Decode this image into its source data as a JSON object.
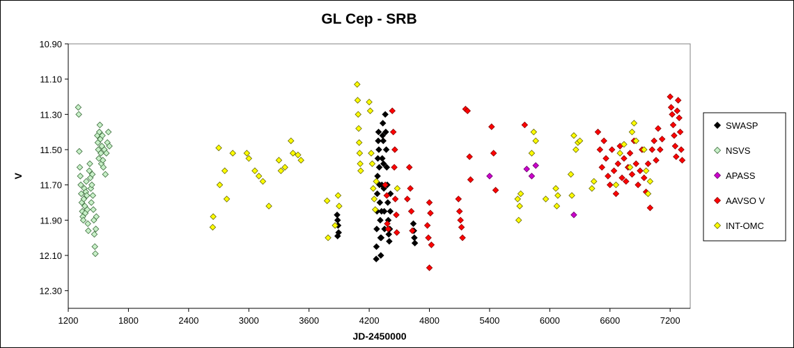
{
  "chart_data": {
    "type": "scatter",
    "title": "GL Cep - SRB",
    "xlabel": "JD-2450000",
    "ylabel": "V",
    "xlim": [
      1200,
      7400
    ],
    "ylim": [
      10.9,
      12.4
    ],
    "y_inverted": true,
    "grid": false,
    "legend_position": "right",
    "x_ticks": [
      "1200",
      "1800",
      "2400",
      "3000",
      "3600",
      "4200",
      "4800",
      "5400",
      "6000",
      "6600",
      "7200"
    ],
    "y_ticks": [
      "10.90",
      "11.10",
      "11.30",
      "11.50",
      "11.70",
      "11.90",
      "12.10",
      "12.30"
    ],
    "series": [
      {
        "name": "SWASP",
        "marker": "diamond",
        "fill": "#000000",
        "edge": "#000000",
        "points": [
          [
            3880,
            11.87
          ],
          [
            3885,
            11.9
          ],
          [
            3890,
            11.93
          ],
          [
            3895,
            11.97
          ],
          [
            3885,
            11.99
          ],
          [
            4270,
            12.12
          ],
          [
            4272,
            12.05
          ],
          [
            4275,
            11.95
          ],
          [
            4278,
            11.85
          ],
          [
            4280,
            11.75
          ],
          [
            4283,
            11.65
          ],
          [
            4286,
            11.55
          ],
          [
            4290,
            11.45
          ],
          [
            4293,
            11.4
          ],
          [
            4296,
            11.5
          ],
          [
            4300,
            11.6
          ],
          [
            4303,
            11.7
          ],
          [
            4306,
            11.8
          ],
          [
            4310,
            11.9
          ],
          [
            4313,
            12.0
          ],
          [
            4316,
            12.1
          ],
          [
            4320,
            12.0
          ],
          [
            4323,
            11.85
          ],
          [
            4326,
            11.7
          ],
          [
            4330,
            11.55
          ],
          [
            4333,
            11.42
          ],
          [
            4336,
            11.35
          ],
          [
            4340,
            11.45
          ],
          [
            4343,
            11.58
          ],
          [
            4346,
            11.72
          ],
          [
            4350,
            11.85
          ],
          [
            4353,
            11.95
          ],
          [
            4360,
            11.3
          ],
          [
            4365,
            11.4
          ],
          [
            4370,
            11.5
          ],
          [
            4375,
            11.6
          ],
          [
            4380,
            11.7
          ],
          [
            4385,
            11.8
          ],
          [
            4390,
            11.9
          ],
          [
            4395,
            11.98
          ],
          [
            4400,
            12.02
          ],
          [
            4405,
            11.95
          ],
          [
            4410,
            11.85
          ],
          [
            4412,
            11.75
          ],
          [
            4640,
            11.92
          ],
          [
            4645,
            11.96
          ],
          [
            4650,
            12.0
          ],
          [
            4655,
            12.03
          ]
        ]
      },
      {
        "name": "NSVS",
        "marker": "diamond",
        "fill": "#c8f0c8",
        "edge": "#3a6a3a",
        "points": [
          [
            1300,
            11.26
          ],
          [
            1305,
            11.3
          ],
          [
            1310,
            11.51
          ],
          [
            1315,
            11.6
          ],
          [
            1320,
            11.65
          ],
          [
            1325,
            11.7
          ],
          [
            1330,
            11.75
          ],
          [
            1335,
            11.8
          ],
          [
            1340,
            11.85
          ],
          [
            1345,
            11.88
          ],
          [
            1350,
            11.9
          ],
          [
            1355,
            11.78
          ],
          [
            1360,
            11.72
          ],
          [
            1365,
            11.82
          ],
          [
            1370,
            11.86
          ],
          [
            1375,
            11.74
          ],
          [
            1380,
            11.68
          ],
          [
            1385,
            11.76
          ],
          [
            1390,
            11.84
          ],
          [
            1395,
            11.92
          ],
          [
            1400,
            11.96
          ],
          [
            1410,
            11.62
          ],
          [
            1415,
            11.58
          ],
          [
            1420,
            11.66
          ],
          [
            1425,
            11.72
          ],
          [
            1430,
            11.8
          ],
          [
            1435,
            11.7
          ],
          [
            1440,
            11.64
          ],
          [
            1445,
            11.76
          ],
          [
            1450,
            11.84
          ],
          [
            1455,
            11.9
          ],
          [
            1460,
            11.98
          ],
          [
            1465,
            12.05
          ],
          [
            1470,
            12.09
          ],
          [
            1475,
            11.95
          ],
          [
            1480,
            11.88
          ],
          [
            1490,
            11.42
          ],
          [
            1495,
            11.46
          ],
          [
            1500,
            11.5
          ],
          [
            1505,
            11.55
          ],
          [
            1510,
            11.4
          ],
          [
            1515,
            11.36
          ],
          [
            1520,
            11.44
          ],
          [
            1525,
            11.52
          ],
          [
            1530,
            11.58
          ],
          [
            1535,
            11.48
          ],
          [
            1540,
            11.42
          ],
          [
            1545,
            11.56
          ],
          [
            1550,
            11.6
          ],
          [
            1560,
            11.5
          ],
          [
            1570,
            11.64
          ],
          [
            1580,
            11.52
          ],
          [
            1590,
            11.46
          ],
          [
            1600,
            11.4
          ],
          [
            1610,
            11.48
          ]
        ]
      },
      {
        "name": "APASS",
        "marker": "diamond",
        "fill": "#cc00cc",
        "edge": "#660066",
        "points": [
          [
            5400,
            11.65
          ],
          [
            5770,
            11.61
          ],
          [
            5820,
            11.65
          ],
          [
            5860,
            11.59
          ],
          [
            6240,
            11.87
          ]
        ]
      },
      {
        "name": "AAVSO V",
        "marker": "diamond",
        "fill": "#ff0000",
        "edge": "#880000",
        "points": [
          [
            4360,
            11.7
          ],
          [
            4375,
            11.76
          ],
          [
            4380,
            11.92
          ],
          [
            4390,
            11.95
          ],
          [
            4430,
            11.28
          ],
          [
            4440,
            11.4
          ],
          [
            4450,
            11.6
          ],
          [
            4460,
            11.78
          ],
          [
            4470,
            11.87
          ],
          [
            4475,
            11.97
          ],
          [
            4455,
            11.5
          ],
          [
            4580,
            11.78
          ],
          [
            4600,
            11.6
          ],
          [
            4610,
            11.72
          ],
          [
            4620,
            11.85
          ],
          [
            4630,
            11.96
          ],
          [
            4780,
            11.93
          ],
          [
            4790,
            12.0
          ],
          [
            4800,
            11.8
          ],
          [
            4810,
            11.86
          ],
          [
            4820,
            12.04
          ],
          [
            4800,
            12.17
          ],
          [
            5090,
            11.78
          ],
          [
            5100,
            11.85
          ],
          [
            5110,
            11.9
          ],
          [
            5120,
            11.94
          ],
          [
            5130,
            12.0
          ],
          [
            5160,
            11.27
          ],
          [
            5180,
            11.28
          ],
          [
            5200,
            11.54
          ],
          [
            5210,
            11.67
          ],
          [
            5420,
            11.37
          ],
          [
            5440,
            11.52
          ],
          [
            5460,
            11.73
          ],
          [
            5750,
            11.36
          ],
          [
            6480,
            11.4
          ],
          [
            6500,
            11.5
          ],
          [
            6520,
            11.6
          ],
          [
            6540,
            11.45
          ],
          [
            6560,
            11.55
          ],
          [
            6580,
            11.65
          ],
          [
            6600,
            11.7
          ],
          [
            6620,
            11.5
          ],
          [
            6640,
            11.62
          ],
          [
            6660,
            11.75
          ],
          [
            6680,
            11.58
          ],
          [
            6700,
            11.48
          ],
          [
            6720,
            11.66
          ],
          [
            6740,
            11.55
          ],
          [
            6760,
            11.68
          ],
          [
            6780,
            11.6
          ],
          [
            6800,
            11.52
          ],
          [
            6820,
            11.64
          ],
          [
            6840,
            11.45
          ],
          [
            6860,
            11.58
          ],
          [
            6880,
            11.7
          ],
          [
            6900,
            11.62
          ],
          [
            6920,
            11.5
          ],
          [
            6940,
            11.66
          ],
          [
            6960,
            11.74
          ],
          [
            6980,
            11.58
          ],
          [
            7000,
            11.83
          ],
          [
            7020,
            11.5
          ],
          [
            7040,
            11.45
          ],
          [
            7060,
            11.56
          ],
          [
            7080,
            11.38
          ],
          [
            7100,
            11.5
          ],
          [
            7120,
            11.44
          ],
          [
            7200,
            11.2
          ],
          [
            7210,
            11.26
          ],
          [
            7220,
            11.3
          ],
          [
            7230,
            11.36
          ],
          [
            7240,
            11.42
          ],
          [
            7250,
            11.48
          ],
          [
            7260,
            11.54
          ],
          [
            7270,
            11.28
          ],
          [
            7280,
            11.22
          ],
          [
            7290,
            11.32
          ],
          [
            7300,
            11.4
          ],
          [
            7310,
            11.5
          ],
          [
            7320,
            11.56
          ]
        ]
      },
      {
        "name": "INT-OMC",
        "marker": "diamond",
        "fill": "#ffff00",
        "edge": "#666600",
        "points": [
          [
            2640,
            11.94
          ],
          [
            2645,
            11.88
          ],
          [
            2700,
            11.49
          ],
          [
            2710,
            11.7
          ],
          [
            2760,
            11.62
          ],
          [
            2780,
            11.78
          ],
          [
            2840,
            11.52
          ],
          [
            2980,
            11.52
          ],
          [
            3000,
            11.55
          ],
          [
            3060,
            11.62
          ],
          [
            3100,
            11.65
          ],
          [
            3140,
            11.68
          ],
          [
            3200,
            11.82
          ],
          [
            3300,
            11.56
          ],
          [
            3320,
            11.62
          ],
          [
            3360,
            11.6
          ],
          [
            3420,
            11.45
          ],
          [
            3440,
            11.52
          ],
          [
            3490,
            11.53
          ],
          [
            3520,
            11.56
          ],
          [
            3780,
            11.79
          ],
          [
            3790,
            12.0
          ],
          [
            3860,
            11.93
          ],
          [
            3890,
            11.76
          ],
          [
            3900,
            11.82
          ],
          [
            4080,
            11.13
          ],
          [
            4085,
            11.22
          ],
          [
            4090,
            11.3
          ],
          [
            4095,
            11.38
          ],
          [
            4100,
            11.46
          ],
          [
            4105,
            11.52
          ],
          [
            4110,
            11.58
          ],
          [
            4115,
            11.62
          ],
          [
            4200,
            11.23
          ],
          [
            4210,
            11.28
          ],
          [
            4220,
            11.52
          ],
          [
            4230,
            11.58
          ],
          [
            4240,
            11.72
          ],
          [
            4250,
            11.78
          ],
          [
            4260,
            11.84
          ],
          [
            4270,
            11.68
          ],
          [
            4480,
            11.72
          ],
          [
            5680,
            11.78
          ],
          [
            5690,
            11.9
          ],
          [
            5700,
            11.82
          ],
          [
            5710,
            11.75
          ],
          [
            5820,
            11.52
          ],
          [
            5840,
            11.4
          ],
          [
            5860,
            11.45
          ],
          [
            5960,
            11.78
          ],
          [
            6060,
            11.72
          ],
          [
            6070,
            11.82
          ],
          [
            6080,
            11.76
          ],
          [
            6210,
            11.64
          ],
          [
            6220,
            11.76
          ],
          [
            6240,
            11.42
          ],
          [
            6260,
            11.5
          ],
          [
            6280,
            11.46
          ],
          [
            6300,
            11.45
          ],
          [
            6420,
            11.72
          ],
          [
            6440,
            11.68
          ],
          [
            6660,
            11.7
          ],
          [
            6700,
            11.52
          ],
          [
            6740,
            11.47
          ],
          [
            6800,
            11.6
          ],
          [
            6820,
            11.4
          ],
          [
            6840,
            11.35
          ],
          [
            6860,
            11.45
          ],
          [
            6940,
            11.5
          ],
          [
            6960,
            11.62
          ],
          [
            6980,
            11.75
          ],
          [
            7000,
            11.68
          ]
        ]
      }
    ]
  }
}
